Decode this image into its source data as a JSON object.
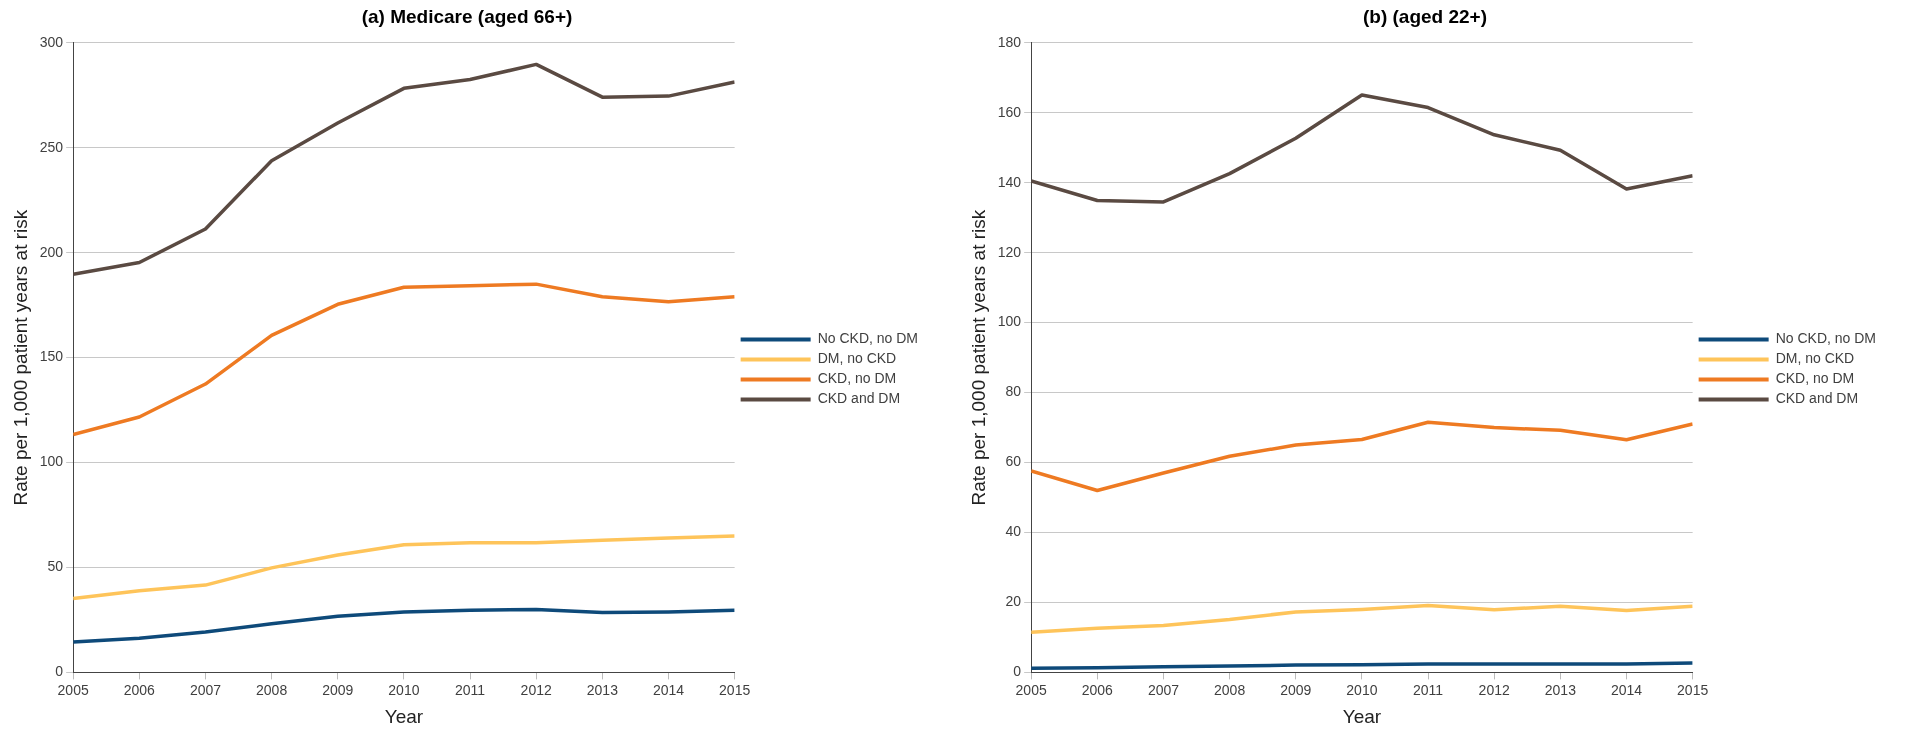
{
  "chart_data": [
    {
      "type": "line",
      "title": "(a) Medicare (aged 66+)",
      "xlabel": "Year",
      "ylabel": "Rate per 1,000 patient years at risk",
      "x": [
        2005,
        2006,
        2007,
        2008,
        2009,
        2010,
        2011,
        2012,
        2013,
        2014,
        2015
      ],
      "xlim": [
        2005,
        2015
      ],
      "xticks": [
        2005,
        2006,
        2007,
        2008,
        2009,
        2010,
        2011,
        2012,
        2013,
        2014,
        2015
      ],
      "ylim": [
        0,
        300
      ],
      "yticks": [
        0,
        50,
        100,
        150,
        200,
        250,
        300
      ],
      "grid": "y",
      "legend": "right",
      "marker": "none",
      "series": [
        {
          "name": "No CKD, no DM",
          "color": "#0e4a7a",
          "values": [
            14.5,
            16.3,
            19.2,
            23.2,
            26.8,
            28.8,
            29.6,
            30,
            28.6,
            28.8,
            29.6
          ]
        },
        {
          "name": "DM, no CKD",
          "color": "#fec45a",
          "values": [
            35.2,
            38.9,
            41.6,
            49.8,
            55.9,
            60.8,
            61.8,
            61.8,
            63,
            64,
            65
          ]
        },
        {
          "name": "CKD, no DM",
          "color": "#ee7a22",
          "values": [
            113.3,
            121.7,
            137.4,
            160.6,
            175.4,
            183.5,
            184.2,
            185,
            179,
            176.6,
            179
          ]
        },
        {
          "name": "CKD and DM",
          "color": "#5a4a42",
          "values": [
            189.7,
            195.3,
            211.3,
            243.8,
            261.8,
            278.3,
            282.5,
            289.7,
            274.1,
            274.6,
            281.3
          ]
        }
      ]
    },
    {
      "type": "line",
      "title": "(b) (aged 22+)",
      "xlabel": "Year",
      "ylabel": "Rate per 1,000 patient years at risk",
      "x": [
        2005,
        2006,
        2007,
        2008,
        2009,
        2010,
        2011,
        2012,
        2013,
        2014,
        2015
      ],
      "xlim": [
        2005,
        2015
      ],
      "xticks": [
        2005,
        2006,
        2007,
        2008,
        2009,
        2010,
        2011,
        2012,
        2013,
        2014,
        2015
      ],
      "ylim": [
        0,
        180
      ],
      "yticks": [
        0,
        20,
        40,
        60,
        80,
        100,
        120,
        140,
        160,
        180
      ],
      "grid": "y",
      "legend": "right",
      "marker": "none",
      "series": [
        {
          "name": "No CKD, no DM",
          "color": "#0e4a7a",
          "values": [
            1.2,
            1.3,
            1.6,
            1.8,
            2.1,
            2.2,
            2.4,
            2.4,
            2.4,
            2.4,
            2.7
          ]
        },
        {
          "name": "DM, no CKD",
          "color": "#fec45a",
          "values": [
            11.5,
            12.6,
            13.4,
            15.1,
            17.3,
            18,
            19.1,
            17.9,
            18.9,
            17.7,
            18.9
          ]
        },
        {
          "name": "CKD, no DM",
          "color": "#ee7a22",
          "values": [
            57.6,
            52,
            57,
            61.8,
            65,
            66.6,
            71.5,
            70,
            69.2,
            66.5,
            71
          ]
        },
        {
          "name": "CKD and DM",
          "color": "#5a4a42",
          "values": [
            140.5,
            134.9,
            134.5,
            142.6,
            152.7,
            165.1,
            161.5,
            153.7,
            149.3,
            138.2,
            142
          ]
        }
      ]
    }
  ]
}
